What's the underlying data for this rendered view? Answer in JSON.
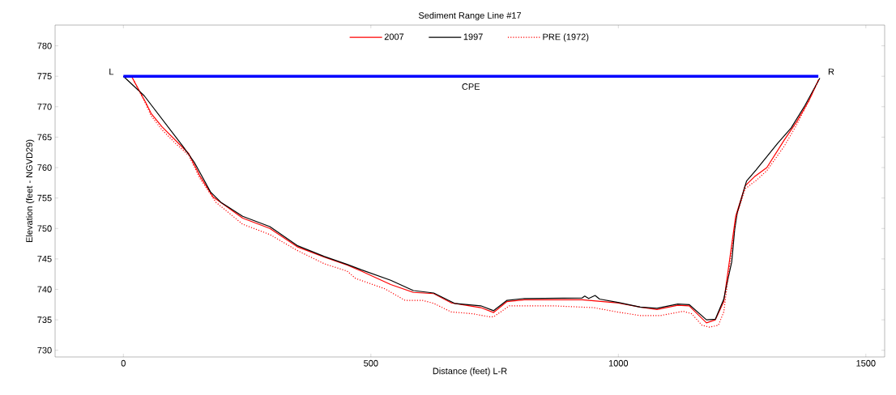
{
  "chart_data": {
    "type": "line",
    "title": "Sediment Range Line #17",
    "xlabel": "Distance (feet) L-R",
    "ylabel": "Elevation (feet - NGVD29)",
    "xlim": [
      -138,
      1538
    ],
    "ylim": [
      728.9,
      783.4
    ],
    "xticks": [
      0,
      500,
      1000,
      1500
    ],
    "yticks": [
      730,
      735,
      740,
      745,
      750,
      755,
      760,
      765,
      770,
      775,
      780
    ],
    "legend": "top",
    "grid": false,
    "series": [
      {
        "name": "2007",
        "color": "#ff0000",
        "line_style": "solid",
        "x": [
          17,
          45,
          56,
          78,
          105,
          132,
          154,
          181,
          241,
          296,
          351,
          406,
          452,
          481,
          540,
          586,
          627,
          662,
          722,
          748,
          775,
          810,
          927,
          997,
          1044,
          1078,
          1120,
          1143,
          1178,
          1196,
          1213,
          1225,
          1237,
          1256,
          1275,
          1300,
          1335,
          1360,
          1385,
          1405
        ],
        "values": [
          774.9,
          770.7,
          768.9,
          766.7,
          764.5,
          762.3,
          758.7,
          755.2,
          751.7,
          750,
          747,
          745.3,
          744,
          743,
          740.8,
          739.5,
          739.3,
          737.8,
          737,
          736.2,
          738,
          738.3,
          738.3,
          737.8,
          737.1,
          736.7,
          737.4,
          737.3,
          734.5,
          735,
          738,
          745,
          752,
          757,
          758.5,
          760,
          764.5,
          767.5,
          771,
          774.5
        ]
      },
      {
        "name": "1997",
        "color": "#000000",
        "line_style": "solid",
        "x": [
          0,
          42,
          121,
          143,
          176,
          197,
          241,
          296,
          351,
          406,
          452,
          481,
          540,
          586,
          627,
          669,
          722,
          748,
          775,
          810,
          927,
          932,
          940,
          953,
          962,
          997,
          1044,
          1078,
          1120,
          1143,
          1178,
          1196,
          1213,
          1219,
          1229,
          1235,
          1240,
          1259,
          1278,
          1322,
          1349,
          1377,
          1407
        ],
        "values": [
          775,
          771.8,
          763.4,
          760.9,
          756,
          754.3,
          752,
          750.3,
          747.2,
          745.4,
          744.1,
          743.2,
          741.5,
          739.8,
          739.4,
          737.7,
          737.3,
          736.5,
          738.2,
          738.5,
          738.6,
          738.9,
          738.5,
          739,
          738.4,
          737.9,
          737.1,
          736.9,
          737.6,
          737.5,
          735,
          735.1,
          738.4,
          740.8,
          744.5,
          749.8,
          752.5,
          757.8,
          759.6,
          764,
          766.5,
          770.2,
          774.7
        ]
      },
      {
        "name": "PRE (1972)",
        "color": "#ff0000",
        "line_style": "dotted",
        "x": [
          17,
          45,
          56,
          78,
          105,
          132,
          154,
          187,
          241,
          296,
          351,
          406,
          452,
          469,
          528,
          569,
          604,
          627,
          662,
          705,
          739,
          748,
          780,
          867,
          950,
          997,
          1044,
          1085,
          1131,
          1148,
          1169,
          1184,
          1202,
          1213,
          1225,
          1237,
          1256,
          1280,
          1300,
          1335,
          1360,
          1385,
          1405
        ],
        "values": [
          774.9,
          770.5,
          768.5,
          766.2,
          764,
          762,
          758.3,
          754.3,
          750.7,
          749,
          746.4,
          744.2,
          743,
          741.8,
          740.1,
          738.2,
          738.2,
          737.7,
          736.3,
          736,
          735.5,
          735.5,
          737.3,
          737.3,
          737,
          736.3,
          735.7,
          735.7,
          736.4,
          736,
          734.1,
          733.8,
          734.1,
          736.3,
          744,
          751.5,
          756.5,
          758,
          759.5,
          763.5,
          767,
          771,
          774.5
        ]
      },
      {
        "color": "#0000ff",
        "line_style": "solid",
        "x": [
          0,
          1404
        ],
        "values": [
          775,
          775
        ]
      }
    ],
    "annotations": [
      "L",
      "R",
      "CPE"
    ]
  }
}
